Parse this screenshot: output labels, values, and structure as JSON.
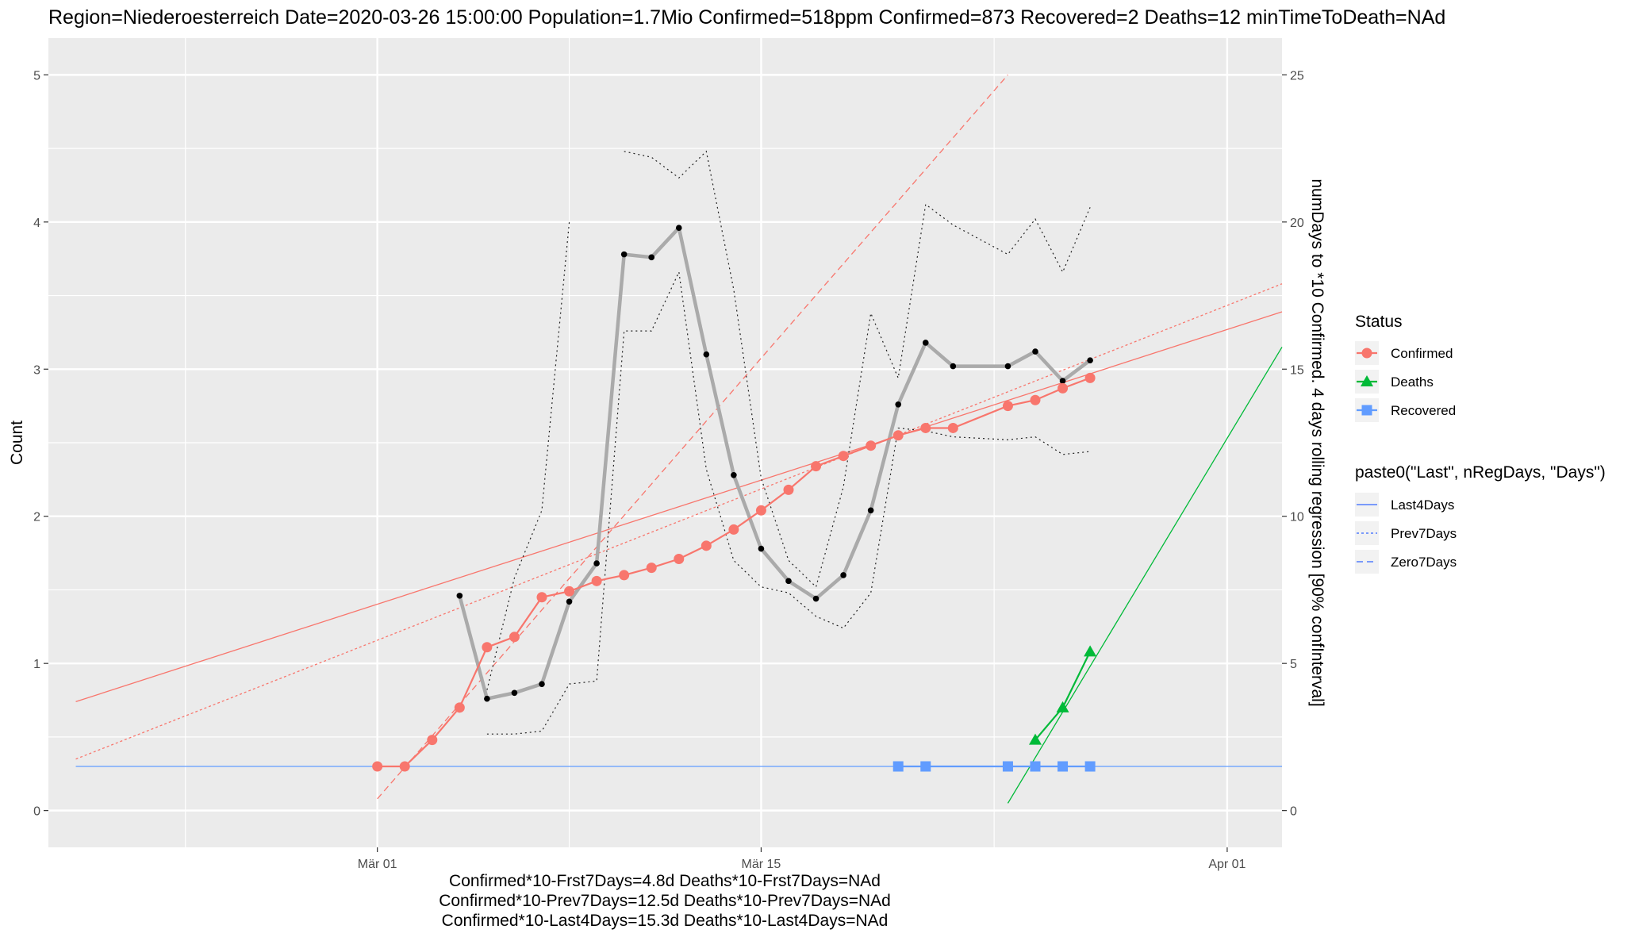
{
  "title": "Region=Niederoesterreich Date=2020-03-26 15:00:00  Population=1.7Mio Confirmed=518ppm  Confirmed=873  Recovered=2 Deaths=12  minTimeToDeath=NAd",
  "chart_data": {
    "type": "line",
    "title": "Region=Niederoesterreich Date=2020-03-26 15:00:00  Population=1.7Mio Confirmed=518ppm  Confirmed=873  Recovered=2 Deaths=12  minTimeToDeath=NAd",
    "xlabel": "",
    "ylabel": "Count",
    "y2label": "numDays to *10 Confirmed. 4 days rolling regression [90% confInterval]",
    "xlim": [
      "2020-02-18",
      "2020-04-03"
    ],
    "ylim": [
      -0.25,
      5.25
    ],
    "y2lim": [
      -1.25,
      26.25
    ],
    "x_ticks": [
      {
        "date": "2020-03-01",
        "label": "Mär 01"
      },
      {
        "date": "2020-03-15",
        "label": "Mär 15"
      },
      {
        "date": "2020-04-01",
        "label": "Apr 01"
      }
    ],
    "y_ticks": [
      0,
      1,
      2,
      3,
      4,
      5
    ],
    "y2_ticks": [
      0,
      5,
      10,
      15,
      20,
      25
    ],
    "grid": true,
    "scale": "log10 of count (left axis)",
    "series": [
      {
        "name": "Confirmed",
        "color": "#F8766D",
        "marker": "circle",
        "x": [
          "2020-03-01",
          "2020-03-02",
          "2020-03-03",
          "2020-03-04",
          "2020-03-05",
          "2020-03-06",
          "2020-03-07",
          "2020-03-08",
          "2020-03-09",
          "2020-03-10",
          "2020-03-11",
          "2020-03-12",
          "2020-03-13",
          "2020-03-14",
          "2020-03-15",
          "2020-03-16",
          "2020-03-17",
          "2020-03-18",
          "2020-03-19",
          "2020-03-20",
          "2020-03-21",
          "2020-03-22",
          "2020-03-24",
          "2020-03-25",
          "2020-03-26",
          "2020-03-27"
        ],
        "y": [
          0.3,
          0.3,
          0.48,
          0.7,
          1.11,
          1.18,
          1.45,
          1.49,
          1.56,
          1.6,
          1.65,
          1.71,
          1.8,
          1.91,
          2.04,
          2.18,
          2.34,
          2.41,
          2.48,
          2.55,
          2.6,
          2.6,
          2.75,
          2.79,
          2.87,
          2.94
        ]
      },
      {
        "name": "Deaths",
        "color": "#00BA38",
        "marker": "triangle",
        "x": [
          "2020-03-25",
          "2020-03-26",
          "2020-03-27"
        ],
        "y": [
          0.48,
          0.7,
          1.08
        ]
      },
      {
        "name": "Recovered",
        "color": "#619CFF",
        "marker": "square",
        "x": [
          "2020-03-20",
          "2020-03-21",
          "2020-03-24",
          "2020-03-25",
          "2020-03-26",
          "2020-03-27"
        ],
        "y": [
          0.3,
          0.3,
          0.3,
          0.3,
          0.3,
          0.3
        ]
      }
    ],
    "doubling_days": {
      "axis": "right",
      "color": "#aaaaaa",
      "x": [
        "2020-03-04",
        "2020-03-05",
        "2020-03-06",
        "2020-03-07",
        "2020-03-08",
        "2020-03-09",
        "2020-03-10",
        "2020-03-11",
        "2020-03-12",
        "2020-03-13",
        "2020-03-14",
        "2020-03-15",
        "2020-03-16",
        "2020-03-17",
        "2020-03-18",
        "2020-03-19",
        "2020-03-20",
        "2020-03-21",
        "2020-03-22",
        "2020-03-24",
        "2020-03-25",
        "2020-03-26",
        "2020-03-27"
      ],
      "y": [
        7.3,
        3.8,
        4.0,
        4.3,
        7.1,
        8.4,
        18.9,
        18.8,
        19.8,
        15.5,
        11.4,
        8.9,
        7.8,
        7.2,
        8.0,
        10.2,
        13.8,
        15.9,
        15.1,
        15.1,
        15.6,
        14.6,
        15.3
      ],
      "lower": [
        null,
        2.6,
        2.6,
        2.7,
        4.3,
        4.4,
        16.3,
        16.3,
        18.3,
        11.6,
        8.5,
        7.6,
        7.4,
        6.6,
        6.2,
        7.4,
        13.0,
        12.9,
        12.7,
        12.6,
        12.7,
        12.1,
        12.2
      ],
      "upper": [
        null,
        4.1,
        7.9,
        10.2,
        20.0,
        null,
        22.4,
        22.2,
        21.5,
        22.4,
        17.7,
        11.3,
        8.5,
        7.6,
        11.0,
        16.9,
        14.7,
        20.6,
        19.9,
        18.9,
        20.1,
        18.3,
        20.5
      ]
    },
    "regression_lines": [
      {
        "name": "Last4Days",
        "color": "#F8766D",
        "style": "solid",
        "x": [
          "2020-02-19",
          "2020-04-03"
        ],
        "y": [
          0.74,
          3.39
        ]
      },
      {
        "name": "Prev7Days",
        "color": "#F8766D",
        "style": "dotted",
        "x": [
          "2020-02-19",
          "2020-04-03"
        ],
        "y": [
          0.35,
          3.58
        ]
      },
      {
        "name": "Zero7Days",
        "color": "#F8766D",
        "style": "dashed",
        "x": [
          "2020-03-01",
          "2020-03-24"
        ],
        "y": [
          0.08,
          5.0
        ]
      },
      {
        "name": "Last4Days",
        "color": "#00BA38",
        "style": "solid",
        "x": [
          "2020-03-24",
          "2020-04-03"
        ],
        "y": [
          0.05,
          3.15
        ]
      },
      {
        "name": "Last4Days",
        "color": "#619CFF",
        "style": "solid",
        "x": [
          "2020-02-19",
          "2020-04-03"
        ],
        "y": [
          0.3,
          0.3
        ]
      }
    ],
    "legend_position": "right",
    "legends": [
      {
        "title": "Status",
        "entries": [
          "Confirmed",
          "Deaths",
          "Recovered"
        ]
      },
      {
        "title": "paste0(\"Last\", nRegDays, \"Days\")",
        "entries": [
          "Last4Days",
          "Prev7Days",
          "Zero7Days"
        ]
      }
    ],
    "captions": [
      "Confirmed*10-Frst7Days=4.8d  Deaths*10-Frst7Days=NAd",
      "Confirmed*10-Prev7Days=12.5d  Deaths*10-Prev7Days=NAd",
      "Confirmed*10-Last4Days=15.3d  Deaths*10-Last4Days=NAd"
    ]
  }
}
